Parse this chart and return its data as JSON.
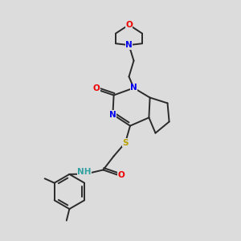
{
  "bg_color": "#dcdcdc",
  "bond_color": "#2a2a2a",
  "bond_width": 1.4,
  "atom_colors": {
    "N": "#0000ee",
    "O": "#ee0000",
    "S": "#b8a000",
    "H": "#30a0a0"
  },
  "font_size": 7.5,
  "label_bg": "#dcdcdc"
}
